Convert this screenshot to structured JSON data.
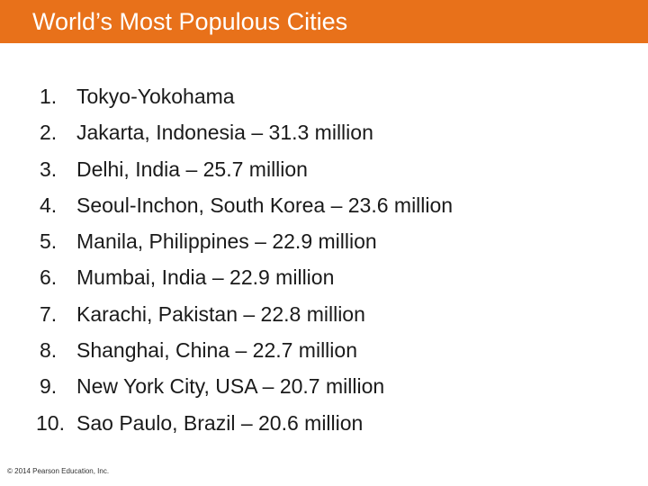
{
  "slide": {
    "title": "World’s Most Populous Cities",
    "items": [
      {
        "number": "1.",
        "text": "Tokyo-Yokohama"
      },
      {
        "number": "2.",
        "text": "Jakarta, Indonesia – 31.3 million"
      },
      {
        "number": "3.",
        "text": "Delhi, India – 25.7 million"
      },
      {
        "number": "4.",
        "text": "Seoul-Inchon, South Korea – 23.6 million"
      },
      {
        "number": "5.",
        "text": "Manila, Philippines – 22.9 million"
      },
      {
        "number": "6.",
        "text": "Mumbai, India – 22.9 million"
      },
      {
        "number": "7.",
        "text": "Karachi, Pakistan – 22.8 million"
      },
      {
        "number": "8.",
        "text": "Shanghai, China – 22.7 million"
      },
      {
        "number": "9.",
        "text": "New York City, USA – 20.7 million"
      },
      {
        "number": "10.",
        "text": "Sao Paulo, Brazil – 20.6 million"
      }
    ],
    "footer": "© 2014 Pearson Education, Inc."
  },
  "colors": {
    "title_bar": "#e8711a",
    "title_text": "#ffffff",
    "body_text": "#1a1a1a"
  }
}
